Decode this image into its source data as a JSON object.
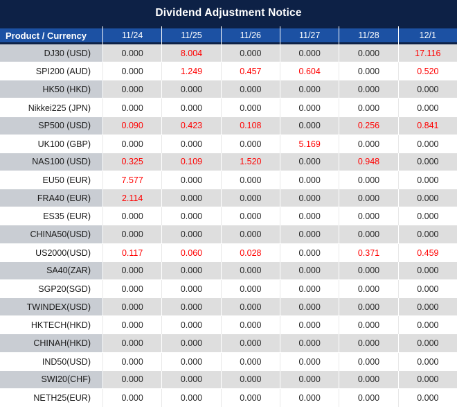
{
  "title": "Dividend Adjustment Notice",
  "table": {
    "corner_header": "Product / Currency",
    "date_headers": [
      "11/24",
      "11/25",
      "11/26",
      "11/27",
      "11/28",
      "12/1"
    ],
    "rows": [
      {
        "product": "DJ30 (USD)",
        "values": [
          "0.000",
          "8.004",
          "0.000",
          "0.000",
          "0.000",
          "17.116"
        ]
      },
      {
        "product": "SPI200 (AUD)",
        "values": [
          "0.000",
          "1.249",
          "0.457",
          "0.604",
          "0.000",
          "0.520"
        ]
      },
      {
        "product": "HK50 (HKD)",
        "values": [
          "0.000",
          "0.000",
          "0.000",
          "0.000",
          "0.000",
          "0.000"
        ]
      },
      {
        "product": "Nikkei225 (JPN)",
        "values": [
          "0.000",
          "0.000",
          "0.000",
          "0.000",
          "0.000",
          "0.000"
        ]
      },
      {
        "product": "SP500 (USD)",
        "values": [
          "0.090",
          "0.423",
          "0.108",
          "0.000",
          "0.256",
          "0.841"
        ]
      },
      {
        "product": "UK100 (GBP)",
        "values": [
          "0.000",
          "0.000",
          "0.000",
          "5.169",
          "0.000",
          "0.000"
        ]
      },
      {
        "product": "NAS100 (USD)",
        "values": [
          "0.325",
          "0.109",
          "1.520",
          "0.000",
          "0.948",
          "0.000"
        ]
      },
      {
        "product": "EU50 (EUR)",
        "values": [
          "7.577",
          "0.000",
          "0.000",
          "0.000",
          "0.000",
          "0.000"
        ]
      },
      {
        "product": "FRA40 (EUR)",
        "values": [
          "2.114",
          "0.000",
          "0.000",
          "0.000",
          "0.000",
          "0.000"
        ]
      },
      {
        "product": "ES35 (EUR)",
        "values": [
          "0.000",
          "0.000",
          "0.000",
          "0.000",
          "0.000",
          "0.000"
        ]
      },
      {
        "product": "CHINA50(USD)",
        "values": [
          "0.000",
          "0.000",
          "0.000",
          "0.000",
          "0.000",
          "0.000"
        ]
      },
      {
        "product": "US2000(USD)",
        "values": [
          "0.117",
          "0.060",
          "0.028",
          "0.000",
          "0.371",
          "0.459"
        ]
      },
      {
        "product": "SA40(ZAR)",
        "values": [
          "0.000",
          "0.000",
          "0.000",
          "0.000",
          "0.000",
          "0.000"
        ]
      },
      {
        "product": "SGP20(SGD)",
        "values": [
          "0.000",
          "0.000",
          "0.000",
          "0.000",
          "0.000",
          "0.000"
        ]
      },
      {
        "product": "TWINDEX(USD)",
        "values": [
          "0.000",
          "0.000",
          "0.000",
          "0.000",
          "0.000",
          "0.000"
        ]
      },
      {
        "product": "HKTECH(HKD)",
        "values": [
          "0.000",
          "0.000",
          "0.000",
          "0.000",
          "0.000",
          "0.000"
        ]
      },
      {
        "product": "CHINAH(HKD)",
        "values": [
          "0.000",
          "0.000",
          "0.000",
          "0.000",
          "0.000",
          "0.000"
        ]
      },
      {
        "product": "IND50(USD)",
        "values": [
          "0.000",
          "0.000",
          "0.000",
          "0.000",
          "0.000",
          "0.000"
        ]
      },
      {
        "product": "SWI20(CHF)",
        "values": [
          "0.000",
          "0.000",
          "0.000",
          "0.000",
          "0.000",
          "0.000"
        ]
      },
      {
        "product": "NETH25(EUR)",
        "values": [
          "0.000",
          "0.000",
          "0.000",
          "0.000",
          "0.000",
          "0.000"
        ]
      }
    ]
  },
  "colors": {
    "title_bar_navy": "#0D2146",
    "header_blue": "#1C51A3",
    "striped_label_gray": "#C9CDD3",
    "striped_value_gray": "#DEDEDE",
    "nonzero_value_red": "#FF0000",
    "value_text_dark": "#262626"
  }
}
